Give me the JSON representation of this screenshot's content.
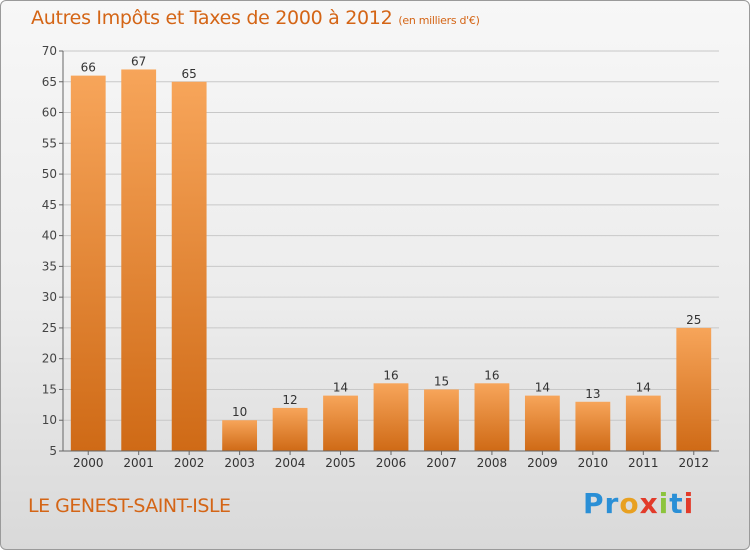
{
  "title": "Autres Impôts et Taxes de 2000 à 2012",
  "unit": "(en milliers d'€)",
  "commune": "LE GENEST-SAINT-ISLE",
  "logo": {
    "letters": [
      "P",
      "r",
      "o",
      "x",
      "i",
      "t",
      "i"
    ],
    "colors": [
      "#2a8fd6",
      "#2a8fd6",
      "#e8a020",
      "#e23b2a",
      "#8cc43c",
      "#2a8fd6",
      "#e23b2a"
    ]
  },
  "colors": {
    "bar_top": "#f7a55a",
    "bar_bottom": "#cf6a16",
    "text": "#d46516",
    "grid": "#c8c8c8"
  },
  "chart_data": {
    "type": "bar",
    "categories": [
      "2000",
      "2001",
      "2002",
      "2003",
      "2004",
      "2005",
      "2006",
      "2007",
      "2008",
      "2009",
      "2010",
      "2011",
      "2012"
    ],
    "values": [
      66,
      67,
      65,
      10,
      12,
      14,
      16,
      15,
      16,
      14,
      13,
      14,
      25
    ],
    "ylim": [
      5,
      70
    ],
    "yticks": [
      5,
      10,
      15,
      20,
      25,
      30,
      35,
      40,
      45,
      50,
      55,
      60,
      65,
      70
    ],
    "grid": true,
    "title": "Autres Impôts et Taxes de 2000 à 2012",
    "xlabel": "",
    "ylabel": ""
  }
}
